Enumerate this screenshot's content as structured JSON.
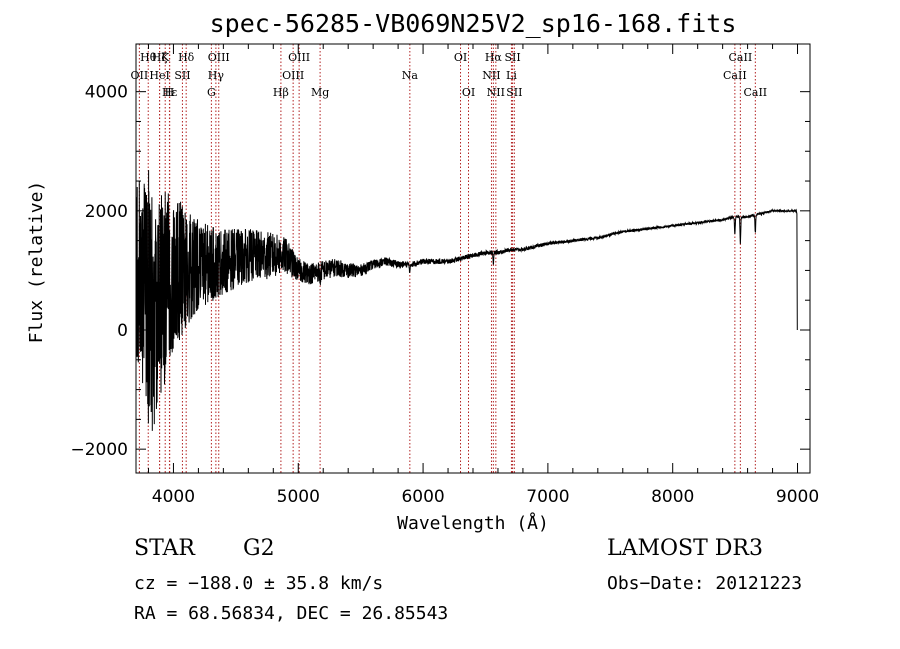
{
  "chart_data": {
    "type": "line",
    "title": "spec-56285-VB069N25V2_sp16-168.fits",
    "xlabel": "Wavelength (Å)",
    "ylabel": "Flux (relative)",
    "xlim": [
      3700,
      9100
    ],
    "ylim": [
      -2400,
      4800
    ],
    "x_ticks": [
      4000,
      5000,
      6000,
      7000,
      8000,
      9000
    ],
    "x_tick_labels": [
      "4000",
      "5000",
      "6000",
      "7000",
      "8000",
      "9000"
    ],
    "y_ticks": [
      -2000,
      0,
      2000,
      4000
    ],
    "y_tick_labels": [
      "−2000",
      "0",
      "2000",
      "4000"
    ],
    "spectrum_envelope": {
      "wavelength": [
        3700,
        3750,
        3800,
        3850,
        3900,
        3950,
        4000,
        4050,
        4100,
        4200,
        4300,
        4400,
        4500,
        4600,
        4700,
        4800,
        4900,
        5000,
        5100,
        5200,
        5300,
        5400,
        5500,
        5600,
        5700,
        5800,
        5900,
        6000,
        6100,
        6200,
        6300,
        6400,
        6500,
        6600,
        6700,
        6800,
        6900,
        7000,
        7200,
        7400,
        7600,
        7800,
        8000,
        8200,
        8400,
        8500,
        8600,
        8700,
        8800,
        8900,
        8990
      ],
      "continuum": [
        1000,
        900,
        500,
        300,
        600,
        800,
        1000,
        1000,
        1000,
        1100,
        1100,
        1150,
        1200,
        1250,
        1250,
        1250,
        1250,
        1000,
        950,
        1000,
        1050,
        1000,
        1000,
        1100,
        1150,
        1100,
        1100,
        1150,
        1150,
        1150,
        1200,
        1250,
        1300,
        1300,
        1350,
        1350,
        1400,
        1450,
        1500,
        1550,
        1650,
        1700,
        1750,
        1800,
        1850,
        1900,
        1900,
        1950,
        2000,
        2000,
        2000
      ],
      "noise_amplitude": [
        1500,
        1800,
        2200,
        2000,
        1800,
        1500,
        1300,
        1200,
        1000,
        750,
        650,
        550,
        500,
        450,
        420,
        380,
        300,
        200,
        180,
        170,
        150,
        130,
        100,
        80,
        70,
        60,
        50,
        45,
        45,
        40,
        40,
        40,
        35,
        35,
        30,
        30,
        30,
        28,
        26,
        24,
        22,
        22,
        20,
        20,
        20,
        18,
        18,
        18,
        18,
        16,
        16
      ]
    },
    "spectral_lines": [
      {
        "name": "Hθ",
        "wavelength": 3798,
        "row": 0
      },
      {
        "name": "OII",
        "wavelength": 3727,
        "row": 1
      },
      {
        "name": "Hζ",
        "wavelength": 3889,
        "row": 0
      },
      {
        "name": "K",
        "wavelength": 3934,
        "row": 0
      },
      {
        "name": "HeI",
        "wavelength": 3889,
        "row": 1
      },
      {
        "name": "SII",
        "wavelength": 4072,
        "row": 1
      },
      {
        "name": "Hε",
        "wavelength": 3970,
        "row": 2
      },
      {
        "name": "H",
        "wavelength": 3968,
        "row": 2
      },
      {
        "name": "Hδ",
        "wavelength": 4102,
        "row": 0
      },
      {
        "name": "OIII",
        "wavelength": 4363,
        "row": 0
      },
      {
        "name": "Hγ",
        "wavelength": 4340,
        "row": 1
      },
      {
        "name": "G",
        "wavelength": 4304,
        "row": 2
      },
      {
        "name": "Hβ",
        "wavelength": 4861,
        "row": 2
      },
      {
        "name": "OIII",
        "wavelength": 4959,
        "row": 1
      },
      {
        "name": "OIII",
        "wavelength": 5007,
        "row": 0
      },
      {
        "name": "Mg",
        "wavelength": 5175,
        "row": 2
      },
      {
        "name": "Na",
        "wavelength": 5894,
        "row": 1
      },
      {
        "name": "OI",
        "wavelength": 6300,
        "row": 0
      },
      {
        "name": "OI",
        "wavelength": 6364,
        "row": 2
      },
      {
        "name": "Hα",
        "wavelength": 6563,
        "row": 0
      },
      {
        "name": "NII",
        "wavelength": 6548,
        "row": 1
      },
      {
        "name": "NII",
        "wavelength": 6583,
        "row": 2
      },
      {
        "name": "SII",
        "wavelength": 6717,
        "row": 0
      },
      {
        "name": "Li",
        "wavelength": 6708,
        "row": 1
      },
      {
        "name": "SII",
        "wavelength": 6731,
        "row": 2
      },
      {
        "name": "CaII",
        "wavelength": 8498,
        "row": 1
      },
      {
        "name": "CaII",
        "wavelength": 8542,
        "row": 0
      },
      {
        "name": "CaII",
        "wavelength": 8662,
        "row": 2
      }
    ],
    "line_marker_color": "#b22222",
    "spectrum_color": "#000000"
  },
  "info": {
    "object_type": "STAR",
    "object_class": "G2",
    "survey": "LAMOST DR3",
    "cz": "cz = −188.0 ± 35.8 km/s",
    "obs_date": "Obs−Date: 20121223",
    "radec": "RA =  68.56834, DEC =  26.85543"
  }
}
